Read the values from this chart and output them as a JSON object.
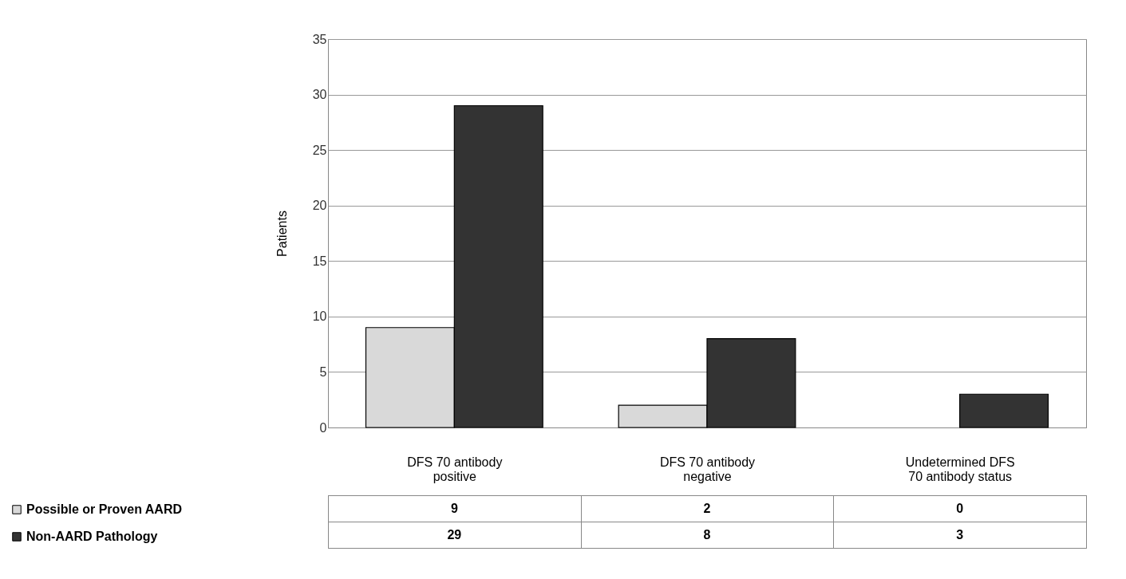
{
  "chart_data": {
    "type": "bar",
    "ylabel": "Patients",
    "categories": [
      "DFS 70 antibody positive",
      "DFS 70 antibody negative",
      "Undetermined DFS 70 antibody status"
    ],
    "series": [
      {
        "name": "Possible or Proven AARD",
        "color": "#d9d9d9",
        "values": [
          9,
          2,
          0
        ]
      },
      {
        "name": "Non-AARD Pathology",
        "color": "#333333",
        "values": [
          29,
          8,
          3
        ]
      }
    ],
    "ylim": [
      0,
      35
    ],
    "yticks": [
      0,
      5,
      10,
      15,
      20,
      25,
      30,
      35
    ],
    "grid": "y",
    "legend": "bottom left",
    "data_labels": true
  }
}
